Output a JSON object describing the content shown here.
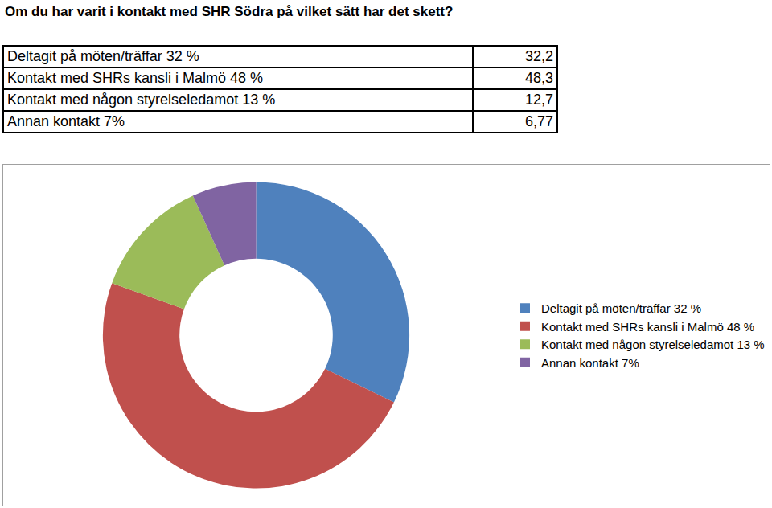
{
  "chart_data": {
    "type": "donut",
    "title": "Om du har varit i kontakt med SHR Södra på vilket sätt har det skett?",
    "categories": [
      "Deltagit på möten/träffar 32 %",
      "Kontakt med SHRs kansli i Malmö 48 %",
      "Kontakt med någon styrelseledamot 13 %",
      "Annan kontakt 7%"
    ],
    "values": [
      32.2,
      48.3,
      12.7,
      6.77
    ],
    "value_labels": [
      "32,2",
      "48,3",
      "12,7",
      "6,77"
    ],
    "colors": [
      "#4f81bd",
      "#c0504d",
      "#9bbb59",
      "#8064a2"
    ],
    "legend": "right",
    "data_labels": false
  }
}
